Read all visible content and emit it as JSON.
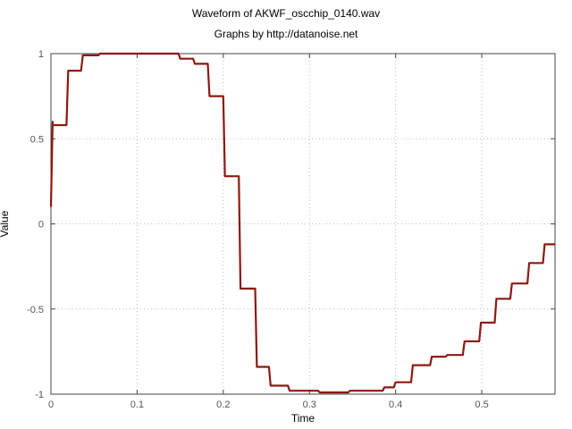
{
  "chart_data": {
    "type": "line",
    "title": "Waveform of AKWF_oscchip_0140.wav",
    "subtitle": "Graphs by http://datanoise.net",
    "xlabel": "Time",
    "ylabel": "Value",
    "xlim": [
      0,
      0.585
    ],
    "ylim": [
      -1,
      1
    ],
    "xticks": [
      0,
      0.1,
      0.2,
      0.3,
      0.4,
      0.5
    ],
    "xtick_labels": [
      "0",
      "0.1",
      "0.2",
      "0.3",
      "0.4",
      "0.5"
    ],
    "yticks": [
      1,
      0.5,
      0,
      -0.5,
      -1
    ],
    "ytick_labels": [
      "1",
      "0.5",
      "0",
      "-0.5",
      "-1"
    ],
    "grid": true,
    "line_color": "#8b1a10",
    "series": [
      {
        "x": [
          0,
          0.002,
          0.002,
          0.005,
          0.018,
          0.02,
          0.035,
          0.037,
          0.055,
          0.057,
          0.148,
          0.15,
          0.165,
          0.167,
          0.182,
          0.184,
          0.2,
          0.202,
          0.218,
          0.22,
          0.237,
          0.239,
          0.253,
          0.255,
          0.275,
          0.277,
          0.31,
          0.312,
          0.345,
          0.347,
          0.385,
          0.387,
          0.398,
          0.4,
          0.418,
          0.42,
          0.44,
          0.442,
          0.458,
          0.46,
          0.478,
          0.48,
          0.497,
          0.499,
          0.515,
          0.517,
          0.533,
          0.535,
          0.553,
          0.555,
          0.571,
          0.573,
          0.585
        ],
        "y": [
          0.1,
          0.6,
          0.58,
          0.58,
          0.58,
          0.9,
          0.9,
          0.99,
          0.99,
          1.0,
          1.0,
          0.97,
          0.97,
          0.94,
          0.94,
          0.75,
          0.75,
          0.28,
          0.28,
          -0.38,
          -0.38,
          -0.84,
          -0.84,
          -0.95,
          -0.95,
          -0.98,
          -0.98,
          -0.99,
          -0.99,
          -0.98,
          -0.98,
          -0.96,
          -0.96,
          -0.93,
          -0.93,
          -0.83,
          -0.83,
          -0.78,
          -0.78,
          -0.77,
          -0.77,
          -0.69,
          -0.69,
          -0.58,
          -0.58,
          -0.44,
          -0.44,
          -0.35,
          -0.35,
          -0.23,
          -0.23,
          -0.12,
          -0.12
        ]
      }
    ]
  }
}
